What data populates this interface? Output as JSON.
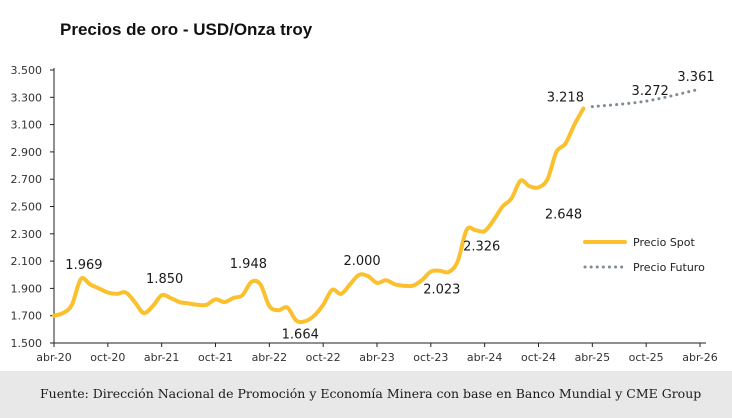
{
  "colors": {
    "spot": "#FBC02D",
    "futuro": "#7F8C95",
    "axis": "#222222",
    "footer_bg": "#E8E8E8"
  },
  "footer": {
    "source": "Fuente: Dirección Nacional de Promoción y Economía Minera con base en Banco Mundial y CME Group"
  },
  "chart_data": {
    "type": "line",
    "title": "Precios de oro - USD/Onza troy",
    "xlabel": "",
    "ylabel": "",
    "ylim": [
      1500,
      3500
    ],
    "yticks": [
      "1.500",
      "1.700",
      "1.900",
      "2.100",
      "2.300",
      "2.500",
      "2.700",
      "2.900",
      "3.100",
      "3.300",
      "3.500"
    ],
    "ytick_values": [
      1500,
      1700,
      1900,
      2100,
      2300,
      2500,
      2700,
      2900,
      3100,
      3300,
      3500
    ],
    "xticks": [
      "abr-20",
      "oct-20",
      "abr-21",
      "oct-21",
      "abr-22",
      "oct-22",
      "abr-23",
      "oct-23",
      "abr-24",
      "oct-24",
      "abr-25",
      "oct-25",
      "abr-26"
    ],
    "xlim": [
      "2020-04",
      "2026-04"
    ],
    "grid": false,
    "legend": "right",
    "series": [
      {
        "name": "Precio Spot",
        "style": "solid",
        "x": [
          "2020-04",
          "2020-05",
          "2020-06",
          "2020-07",
          "2020-08",
          "2020-09",
          "2020-10",
          "2020-11",
          "2020-12",
          "2021-01",
          "2021-02",
          "2021-03",
          "2021-04",
          "2021-05",
          "2021-06",
          "2021-07",
          "2021-08",
          "2021-09",
          "2021-10",
          "2021-11",
          "2021-12",
          "2022-01",
          "2022-02",
          "2022-03",
          "2022-04",
          "2022-05",
          "2022-06",
          "2022-07",
          "2022-08",
          "2022-09",
          "2022-10",
          "2022-11",
          "2022-12",
          "2023-01",
          "2023-02",
          "2023-03",
          "2023-04",
          "2023-05",
          "2023-06",
          "2023-07",
          "2023-08",
          "2023-09",
          "2023-10",
          "2023-11",
          "2023-12",
          "2024-01",
          "2024-02",
          "2024-03",
          "2024-04",
          "2024-05",
          "2024-06",
          "2024-07",
          "2024-08",
          "2024-09",
          "2024-10",
          "2024-11",
          "2024-12",
          "2025-01",
          "2025-02",
          "2025-03"
        ],
        "values": [
          1700,
          1720,
          1780,
          1969,
          1930,
          1900,
          1870,
          1860,
          1870,
          1800,
          1720,
          1770,
          1850,
          1830,
          1800,
          1790,
          1780,
          1780,
          1820,
          1800,
          1830,
          1850,
          1948,
          1930,
          1770,
          1740,
          1760,
          1664,
          1660,
          1700,
          1780,
          1890,
          1860,
          1930,
          2000,
          1990,
          1940,
          1960,
          1930,
          1920,
          1920,
          1960,
          2023,
          2030,
          2020,
          2100,
          2330,
          2326,
          2320,
          2400,
          2500,
          2560,
          2690,
          2648,
          2640,
          2700,
          2900,
          2960,
          3100,
          3218
        ]
      },
      {
        "name": "Precio Futuro",
        "style": "dotted",
        "x": [
          "2025-04",
          "2025-10",
          "2026-04"
        ],
        "values": [
          3232,
          3272,
          3361
        ]
      }
    ],
    "data_labels": [
      {
        "text": "1.969",
        "x": "2020-07",
        "y": 1969
      },
      {
        "text": "1.850",
        "x": "2021-04",
        "y": 1850
      },
      {
        "text": "1.948",
        "x": "2022-02",
        "y": 1948
      },
      {
        "text": "1.664",
        "x": "2022-07",
        "y": 1664
      },
      {
        "text": "2.000",
        "x": "2023-02",
        "y": 2000
      },
      {
        "text": "2.023",
        "x": "2023-10",
        "y": 2023
      },
      {
        "text": "2.326",
        "x": "2024-03",
        "y": 2326
      },
      {
        "text": "2.648",
        "x": "2024-09",
        "y": 2648
      },
      {
        "text": "3.218",
        "x": "2025-03",
        "y": 3218
      },
      {
        "text": "3.272",
        "x": "2025-10",
        "y": 3272
      },
      {
        "text": "3.361",
        "x": "2026-04",
        "y": 3361
      }
    ]
  }
}
